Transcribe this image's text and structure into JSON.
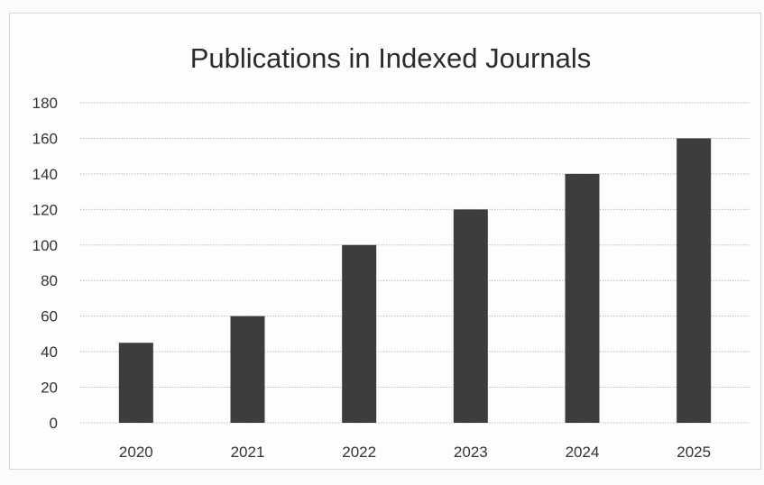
{
  "chart_data": {
    "type": "bar",
    "title": "Publications in Indexed Journals",
    "categories": [
      "2020",
      "2021",
      "2022",
      "2023",
      "2024",
      "2025"
    ],
    "values": [
      45,
      60,
      100,
      120,
      140,
      160
    ],
    "y_ticks": [
      "0",
      "20",
      "40",
      "60",
      "80",
      "100",
      "120",
      "140",
      "160",
      "180"
    ],
    "ylim": [
      0,
      180
    ],
    "grid": true,
    "legend": "none",
    "colors": {
      "bar": "#3d3d3d",
      "grid": "#bdbdbd"
    }
  }
}
